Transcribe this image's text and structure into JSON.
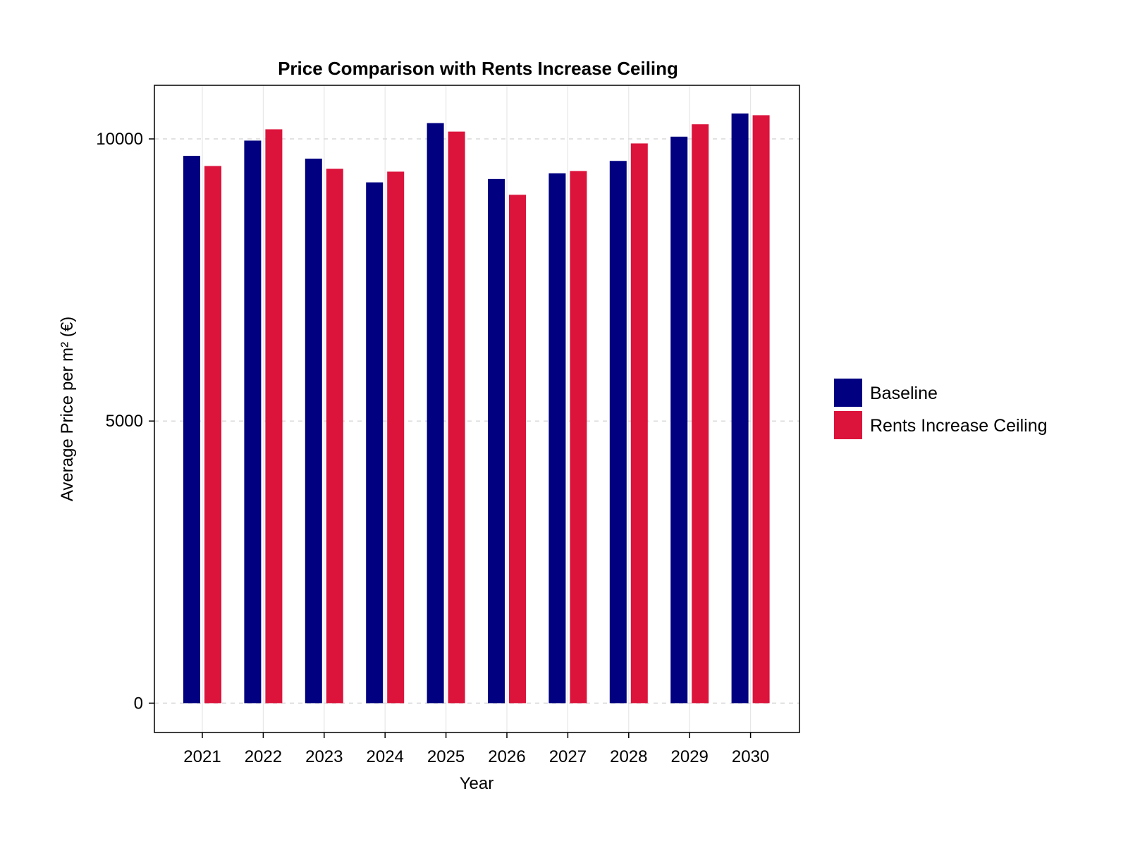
{
  "chart_data": {
    "type": "bar",
    "title": "Price Comparison with Rents Increase Ceiling",
    "xlabel": "Year",
    "ylabel": "Average Price per m² (€)",
    "categories": [
      "2021",
      "2022",
      "2023",
      "2024",
      "2025",
      "2026",
      "2027",
      "2028",
      "2029",
      "2030"
    ],
    "series": [
      {
        "name": "Baseline",
        "color": "#000080",
        "values": [
          9700,
          9970,
          9650,
          9230,
          10280,
          9290,
          9390,
          9610,
          10040,
          10450
        ]
      },
      {
        "name": "Rents Increase Ceiling",
        "color": "#DC143C",
        "values": [
          9520,
          10170,
          9470,
          9420,
          10130,
          9010,
          9430,
          9920,
          10260,
          10420
        ]
      }
    ],
    "yticks": [
      "0",
      "5000",
      "10000"
    ],
    "ylim": [
      -520,
      10950
    ],
    "grid": true,
    "legend_position": "right"
  }
}
